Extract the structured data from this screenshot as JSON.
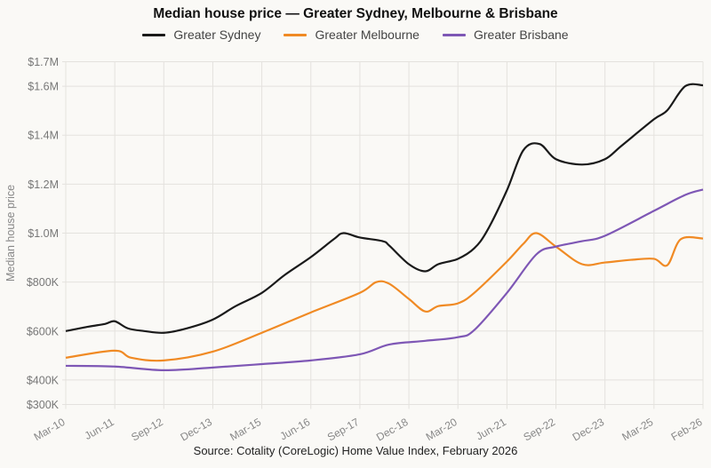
{
  "chart_data": {
    "type": "line",
    "title": "Median house price — Greater Sydney, Melbourne & Brisbane",
    "ylabel": "Median house price",
    "xlabel": "",
    "source": "Source: Cotality (CoreLogic) Home Value Index, February 2026",
    "ylim": [
      300,
      1700
    ],
    "y_unit": "thousand AUD",
    "y_ticks": [
      {
        "value": 300,
        "label": "$300K"
      },
      {
        "value": 400,
        "label": "$400K"
      },
      {
        "value": 600,
        "label": "$600K"
      },
      {
        "value": 800,
        "label": "$800K"
      },
      {
        "value": 1000,
        "label": "$1.0M"
      },
      {
        "value": 1200,
        "label": "$1.2M"
      },
      {
        "value": 1400,
        "label": "$1.4M"
      },
      {
        "value": 1600,
        "label": "$1.6M"
      },
      {
        "value": 1700,
        "label": "$1.7M"
      }
    ],
    "x_ticks": [
      {
        "date": "2010-03",
        "label": "Mar-10"
      },
      {
        "date": "2011-06",
        "label": "Jun-11"
      },
      {
        "date": "2012-09",
        "label": "Sep-12"
      },
      {
        "date": "2013-12",
        "label": "Dec-13"
      },
      {
        "date": "2015-03",
        "label": "Mar-15"
      },
      {
        "date": "2016-06",
        "label": "Jun-16"
      },
      {
        "date": "2017-09",
        "label": "Sep-17"
      },
      {
        "date": "2018-12",
        "label": "Dec-18"
      },
      {
        "date": "2020-03",
        "label": "Mar-20"
      },
      {
        "date": "2021-06",
        "label": "Jun-21"
      },
      {
        "date": "2022-09",
        "label": "Sep-22"
      },
      {
        "date": "2023-12",
        "label": "Dec-23"
      },
      {
        "date": "2025-03",
        "label": "Mar-25"
      },
      {
        "date": "2026-02",
        "label": "Feb-26"
      }
    ],
    "grid": true,
    "legend_position": "top-center",
    "series": [
      {
        "name": "Greater Sydney",
        "color": "#1a1a1a",
        "points": [
          [
            "2010-03",
            600
          ],
          [
            "2010-10",
            618
          ],
          [
            "2011-03",
            629
          ],
          [
            "2011-06",
            640
          ],
          [
            "2011-10",
            611
          ],
          [
            "2012-03",
            600
          ],
          [
            "2012-09",
            593
          ],
          [
            "2013-04",
            611
          ],
          [
            "2013-12",
            647
          ],
          [
            "2014-07",
            702
          ],
          [
            "2015-03",
            756
          ],
          [
            "2015-10",
            829
          ],
          [
            "2016-06",
            902
          ],
          [
            "2017-01",
            975
          ],
          [
            "2017-04",
            1000
          ],
          [
            "2017-09",
            982
          ],
          [
            "2018-04",
            967
          ],
          [
            "2018-06",
            949
          ],
          [
            "2018-12",
            873
          ],
          [
            "2019-05",
            844
          ],
          [
            "2019-09",
            873
          ],
          [
            "2020-03",
            895
          ],
          [
            "2020-08",
            938
          ],
          [
            "2020-12",
            1011
          ],
          [
            "2021-06",
            1175
          ],
          [
            "2021-11",
            1338
          ],
          [
            "2022-04",
            1364
          ],
          [
            "2022-09",
            1302
          ],
          [
            "2023-05",
            1280
          ],
          [
            "2023-12",
            1302
          ],
          [
            "2024-05",
            1356
          ],
          [
            "2025-03",
            1465
          ],
          [
            "2025-06",
            1502
          ],
          [
            "2025-10",
            1600
          ],
          [
            "2026-02",
            1604
          ]
        ]
      },
      {
        "name": "Greater Melbourne",
        "color": "#f08a24",
        "points": [
          [
            "2010-03",
            491
          ],
          [
            "2011-06",
            520
          ],
          [
            "2011-11",
            491
          ],
          [
            "2012-09",
            480
          ],
          [
            "2013-12",
            516
          ],
          [
            "2015-03",
            593
          ],
          [
            "2016-06",
            676
          ],
          [
            "2017-09",
            756
          ],
          [
            "2018-02",
            800
          ],
          [
            "2018-06",
            793
          ],
          [
            "2018-12",
            731
          ],
          [
            "2019-05",
            680
          ],
          [
            "2019-09",
            702
          ],
          [
            "2020-03",
            713
          ],
          [
            "2020-08",
            756
          ],
          [
            "2021-06",
            884
          ],
          [
            "2021-11",
            956
          ],
          [
            "2022-03",
            1000
          ],
          [
            "2022-09",
            945
          ],
          [
            "2023-05",
            873
          ],
          [
            "2023-12",
            880
          ],
          [
            "2024-08",
            891
          ],
          [
            "2025-03",
            895
          ],
          [
            "2025-06",
            869
          ],
          [
            "2025-09",
            975
          ],
          [
            "2026-02",
            978
          ]
        ]
      },
      {
        "name": "Greater Brisbane",
        "color": "#7e57b5",
        "points": [
          [
            "2010-03",
            458
          ],
          [
            "2011-06",
            455
          ],
          [
            "2012-09",
            440
          ],
          [
            "2013-12",
            451
          ],
          [
            "2015-03",
            465
          ],
          [
            "2016-06",
            480
          ],
          [
            "2017-09",
            505
          ],
          [
            "2018-06",
            545
          ],
          [
            "2019-05",
            560
          ],
          [
            "2020-03",
            575
          ],
          [
            "2020-08",
            604
          ],
          [
            "2021-06",
            756
          ],
          [
            "2022-03",
            913
          ],
          [
            "2022-09",
            945
          ],
          [
            "2023-05",
            967
          ],
          [
            "2023-12",
            989
          ],
          [
            "2025-03",
            1091
          ],
          [
            "2025-10",
            1156
          ],
          [
            "2026-02",
            1178
          ]
        ]
      }
    ]
  }
}
